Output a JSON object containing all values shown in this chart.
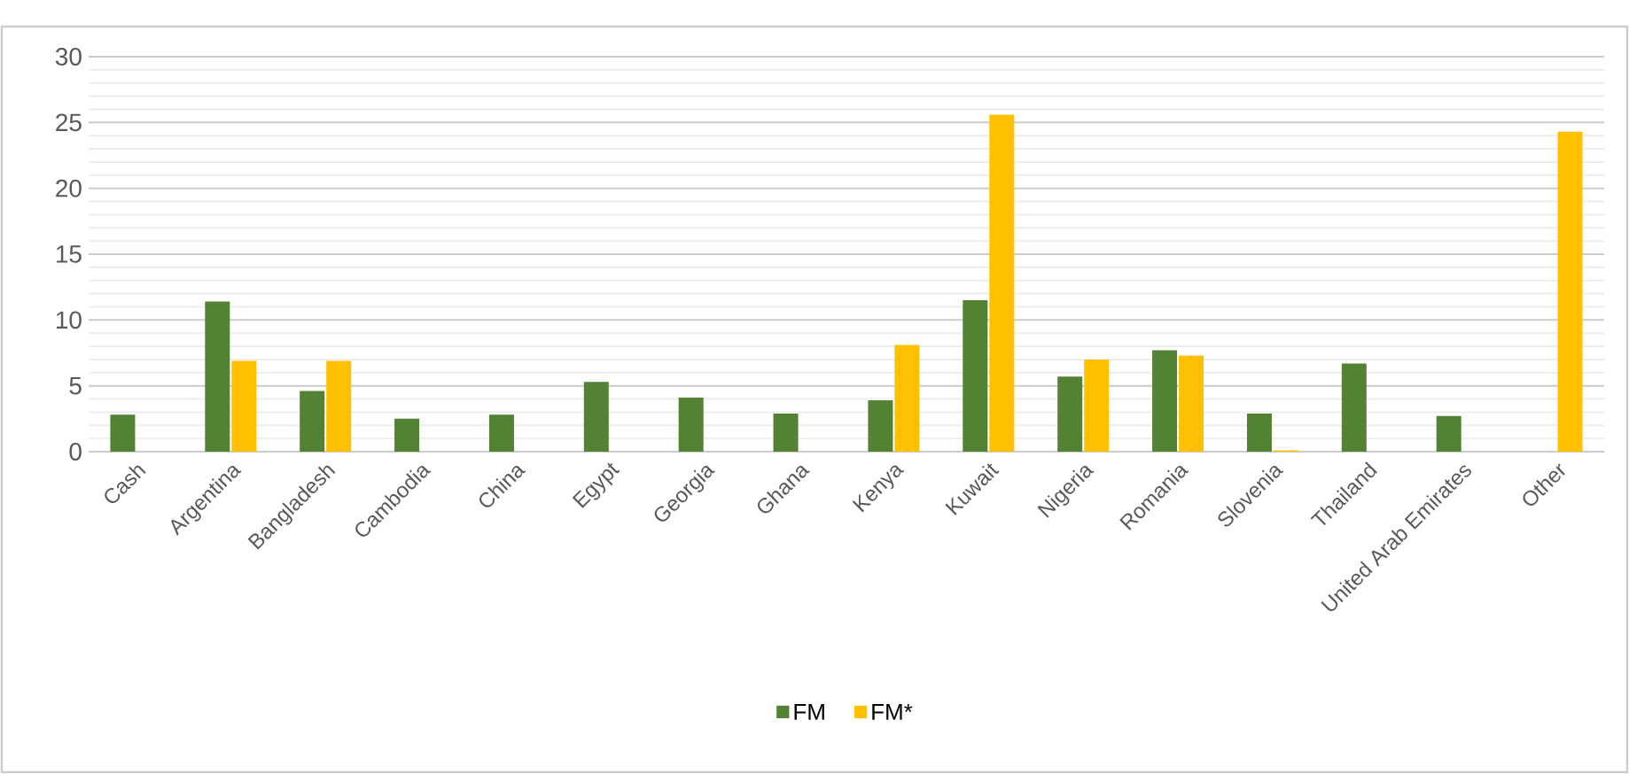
{
  "chart_data": {
    "type": "bar",
    "categories": [
      "Cash",
      "Argentina",
      "Bangladesh",
      "Cambodia",
      "China",
      "Egypt",
      "Georgia",
      "Ghana",
      "Kenya",
      "Kuwait",
      "Nigeria",
      "Romania",
      "Slovenia",
      "Thailand",
      "United Arab Emirates",
      "Other"
    ],
    "series": [
      {
        "name": "FM",
        "color": "#548235",
        "values": [
          2.8,
          11.4,
          4.6,
          2.5,
          2.8,
          5.3,
          4.1,
          2.9,
          3.9,
          11.5,
          5.7,
          7.7,
          2.9,
          6.7,
          2.7,
          null
        ]
      },
      {
        "name": "FM*",
        "color": "#ffc000",
        "values": [
          null,
          6.9,
          6.9,
          null,
          null,
          null,
          null,
          null,
          8.1,
          25.6,
          7.0,
          7.3,
          0.1,
          null,
          null,
          24.3
        ]
      }
    ],
    "ylim": [
      0,
      30
    ],
    "yticks": [
      0,
      5,
      10,
      15,
      20,
      25,
      30
    ],
    "grid": "y",
    "legend": "bottom"
  }
}
